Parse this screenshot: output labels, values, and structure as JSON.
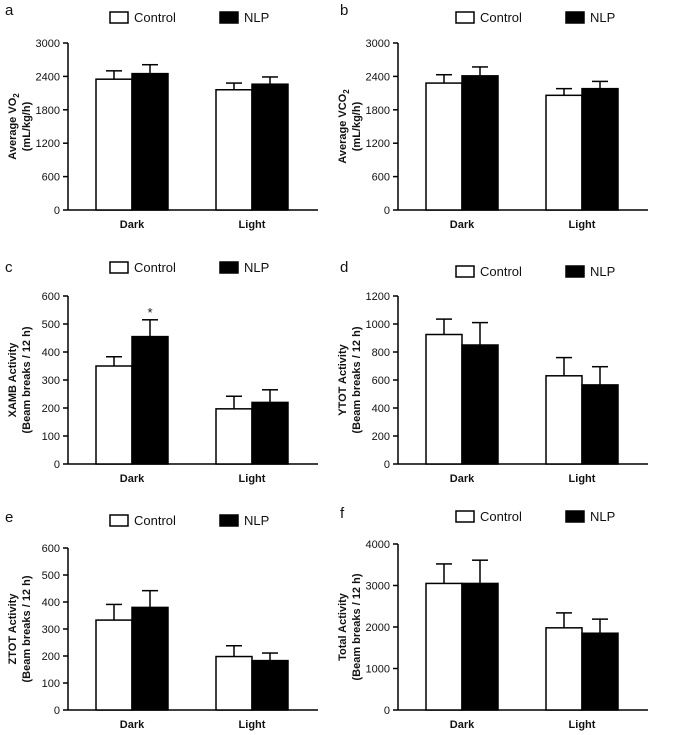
{
  "chart_data": [
    {
      "type": "bar",
      "panel": "a",
      "ylabel_line1": "Average VO",
      "ylabel_sub": "2",
      "ylabel_line2": "(mL/kg/h)",
      "categories": [
        "Dark",
        "Light"
      ],
      "ylim": [
        0,
        3000
      ],
      "yticks": [
        "0",
        "600",
        "1200",
        "1800",
        "2400",
        "3000"
      ],
      "series": [
        {
          "name": "Control",
          "values": [
            2350,
            2160
          ],
          "errors": [
            150,
            120
          ]
        },
        {
          "name": "NLP",
          "values": [
            2450,
            2260
          ],
          "errors": [
            160,
            130
          ]
        }
      ],
      "annotations": []
    },
    {
      "type": "bar",
      "panel": "b",
      "ylabel_line1": "Average VCO",
      "ylabel_sub": "2",
      "ylabel_line2": "(mL/kg/h)",
      "categories": [
        "Dark",
        "Light"
      ],
      "ylim": [
        0,
        3000
      ],
      "yticks": [
        "0",
        "600",
        "1200",
        "1800",
        "2400",
        "3000"
      ],
      "series": [
        {
          "name": "Control",
          "values": [
            2280,
            2060
          ],
          "errors": [
            150,
            120
          ]
        },
        {
          "name": "NLP",
          "values": [
            2410,
            2180
          ],
          "errors": [
            160,
            130
          ]
        }
      ],
      "annotations": []
    },
    {
      "type": "bar",
      "panel": "c",
      "ylabel_line1": "XAMB Activity",
      "ylabel_sub": "",
      "ylabel_line2": "(Beam breaks / 12 h)",
      "categories": [
        "Dark",
        "Light"
      ],
      "ylim": [
        0,
        600
      ],
      "yticks": [
        "0",
        "100",
        "200",
        "300",
        "400",
        "500",
        "600"
      ],
      "series": [
        {
          "name": "Control",
          "values": [
            350,
            197
          ],
          "errors": [
            33,
            45
          ]
        },
        {
          "name": "NLP",
          "values": [
            455,
            220
          ],
          "errors": [
            60,
            45
          ]
        }
      ],
      "annotations": [
        {
          "text": "*",
          "category": 0,
          "series": 1
        }
      ]
    },
    {
      "type": "bar",
      "panel": "d",
      "ylabel_line1": "YTOT Activity",
      "ylabel_sub": "",
      "ylabel_line2": "(Beam breaks / 12 h)",
      "categories": [
        "Dark",
        "Light"
      ],
      "ylim": [
        0,
        1200
      ],
      "yticks": [
        "0",
        "200",
        "400",
        "600",
        "800",
        "1000",
        "1200"
      ],
      "series": [
        {
          "name": "Control",
          "values": [
            925,
            630
          ],
          "errors": [
            110,
            130
          ]
        },
        {
          "name": "NLP",
          "values": [
            850,
            565
          ],
          "errors": [
            160,
            130
          ]
        }
      ],
      "annotations": []
    },
    {
      "type": "bar",
      "panel": "e",
      "ylabel_line1": "ZTOT Activity",
      "ylabel_sub": "",
      "ylabel_line2": "(Beam breaks / 12 h)",
      "categories": [
        "Dark",
        "Light"
      ],
      "ylim": [
        0,
        600
      ],
      "yticks": [
        "0",
        "100",
        "200",
        "300",
        "400",
        "500",
        "600"
      ],
      "series": [
        {
          "name": "Control",
          "values": [
            333,
            198
          ],
          "errors": [
            58,
            40
          ]
        },
        {
          "name": "NLP",
          "values": [
            380,
            183
          ],
          "errors": [
            62,
            28
          ]
        }
      ],
      "annotations": []
    },
    {
      "type": "bar",
      "panel": "f",
      "ylabel_line1": "Total Activity",
      "ylabel_sub": "",
      "ylabel_line2": "(Beam breaks / 12 h)",
      "categories": [
        "Dark",
        "Light"
      ],
      "ylim": [
        0,
        4000
      ],
      "yticks": [
        "0",
        "1000",
        "2000",
        "3000",
        "4000"
      ],
      "series": [
        {
          "name": "Control",
          "values": [
            3050,
            1980
          ],
          "errors": [
            470,
            360
          ]
        },
        {
          "name": "NLP",
          "values": [
            3050,
            1850
          ],
          "errors": [
            560,
            340
          ]
        }
      ],
      "annotations": []
    }
  ],
  "colors": {
    "control_fill": "#ffffff",
    "nlp_fill": "#000000",
    "stroke": "#000000"
  }
}
